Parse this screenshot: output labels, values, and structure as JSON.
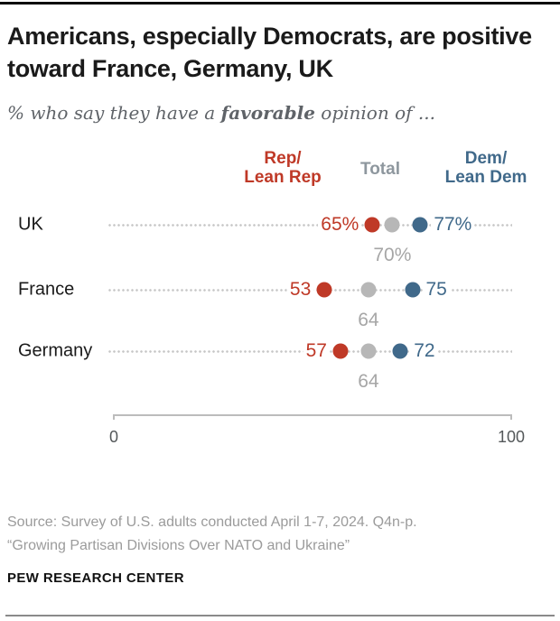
{
  "header": {
    "title": "Americans, especially Democrats, are positive toward France, Germany, UK",
    "subtitle_prefix": "% who say they have a ",
    "subtitle_bold": "favorable",
    "subtitle_suffix": " opinion of ..."
  },
  "legend": {
    "rep_line1": "Rep/",
    "rep_line2": "Lean Rep",
    "total": "Total",
    "dem_line1": "Dem/",
    "dem_line2": "Lean Dem"
  },
  "colors": {
    "rep": "#bf3927",
    "dem": "#40698a",
    "total_dot": "#b7b7b7",
    "total_label": "#a6a6a6",
    "legend_total": "#8e979e",
    "leader": "#c6c6c6"
  },
  "chart_data": {
    "type": "scatter",
    "subtype": "dot-plot",
    "title": "Americans, especially Democrats, are positive toward France, Germany, UK",
    "subtitle": "% who say they have a favorable opinion of ...",
    "categories": [
      "UK",
      "France",
      "Germany"
    ],
    "series": [
      {
        "name": "Rep/Lean Rep",
        "color": "#bf3927",
        "values": [
          65,
          53,
          57
        ],
        "labels": [
          "65%",
          "53",
          "57"
        ]
      },
      {
        "name": "Total",
        "color": "#b7b7b7",
        "values": [
          70,
          64,
          64
        ],
        "labels": [
          "70%",
          "64",
          "64"
        ]
      },
      {
        "name": "Dem/Lean Dem",
        "color": "#40698a",
        "values": [
          77,
          75,
          72
        ],
        "labels": [
          "77%",
          "75",
          "72"
        ]
      }
    ],
    "xlim": [
      0,
      100
    ],
    "axis_ticks": [
      "0",
      "100"
    ],
    "legend_position": "top",
    "grid": false
  },
  "axis": {
    "tick_left": "0",
    "tick_right": "100"
  },
  "footer": {
    "source_line1": "Source: Survey of U.S. adults conducted April 1-7, 2024. Q4n-p.",
    "source_line2": "“Growing Partisan Divisions Over NATO and Ukraine”",
    "brand": "PEW RESEARCH CENTER"
  }
}
